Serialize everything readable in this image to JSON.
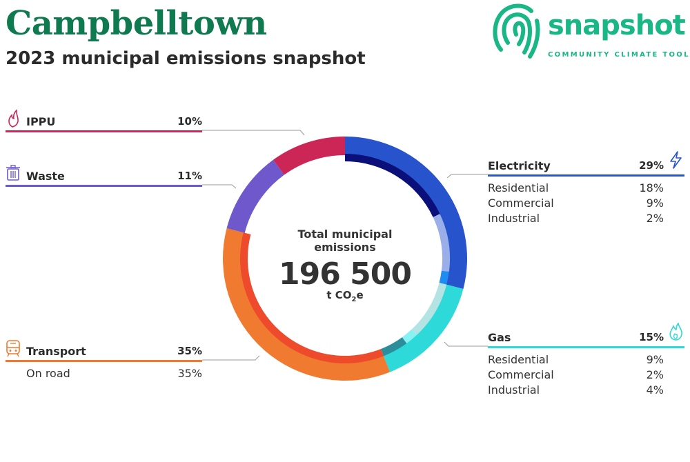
{
  "header": {
    "title": "Campbelltown",
    "subtitle": "2023 municipal emissions snapshot"
  },
  "logo": {
    "word": "snapshot",
    "tagline": "COMMUNITY CLIMATE TOOL"
  },
  "center": {
    "label": "Total municipal emissions",
    "value": "196 500",
    "unit_prefix": "t CO",
    "unit_sub": "2",
    "unit_suffix": "e"
  },
  "colors": {
    "brand": "#0f7a4f",
    "logo": "#19b785",
    "ippu": "#cc2656",
    "waste": "#6e58cc",
    "transport": "#f07a30",
    "electricity": "#2753cc",
    "gas": "#2ed9d9"
  },
  "categories": {
    "ippu": {
      "name": "IPPU",
      "pct": "10%",
      "icon": "flame-icon"
    },
    "waste": {
      "name": "Waste",
      "pct": "11%",
      "icon": "trash-bin-icon"
    },
    "transport": {
      "name": "Transport",
      "pct": "35%",
      "icon": "train-icon",
      "sub": [
        {
          "label": "On road",
          "pct": "35%"
        }
      ]
    },
    "electricity": {
      "name": "Electricity",
      "pct": "29%",
      "icon": "lightning-icon",
      "sub": [
        {
          "label": "Residential",
          "pct": "18%"
        },
        {
          "label": "Commercial",
          "pct": "9%"
        },
        {
          "label": "Industrial",
          "pct": "2%"
        }
      ]
    },
    "gas": {
      "name": "Gas",
      "pct": "15%",
      "icon": "gas-flame-icon",
      "sub": [
        {
          "label": "Residential",
          "pct": "9%"
        },
        {
          "label": "Commercial",
          "pct": "2%"
        },
        {
          "label": "Industrial",
          "pct": "4%"
        }
      ]
    }
  },
  "chart_data": {
    "type": "pie",
    "title": "Total municipal emissions",
    "total": 196500,
    "unit": "t CO2e",
    "series": [
      {
        "name": "Electricity",
        "value": 29,
        "color": "#2753cc",
        "sub": [
          {
            "name": "Residential",
            "value": 18,
            "color": "#0a0f7a"
          },
          {
            "name": "Commercial",
            "value": 9,
            "color": "#9aaeea"
          },
          {
            "name": "Industrial",
            "value": 2,
            "color": "#1e8cf0"
          }
        ]
      },
      {
        "name": "Gas",
        "value": 15,
        "color": "#2ed9d9",
        "sub": [
          {
            "name": "Residential",
            "value": 9,
            "color": "#b3e3e3"
          },
          {
            "name": "Commercial",
            "value": 2,
            "color": "#86f2f2"
          },
          {
            "name": "Industrial",
            "value": 4,
            "color": "#2b8e9a"
          }
        ]
      },
      {
        "name": "Transport",
        "value": 35,
        "color": "#f07a30",
        "sub": [
          {
            "name": "On road",
            "value": 35,
            "color": "#ee4a2c"
          }
        ]
      },
      {
        "name": "Waste",
        "value": 11,
        "color": "#6e58cc",
        "sub": []
      },
      {
        "name": "IPPU",
        "value": 10,
        "color": "#cc2656",
        "sub": []
      }
    ]
  }
}
